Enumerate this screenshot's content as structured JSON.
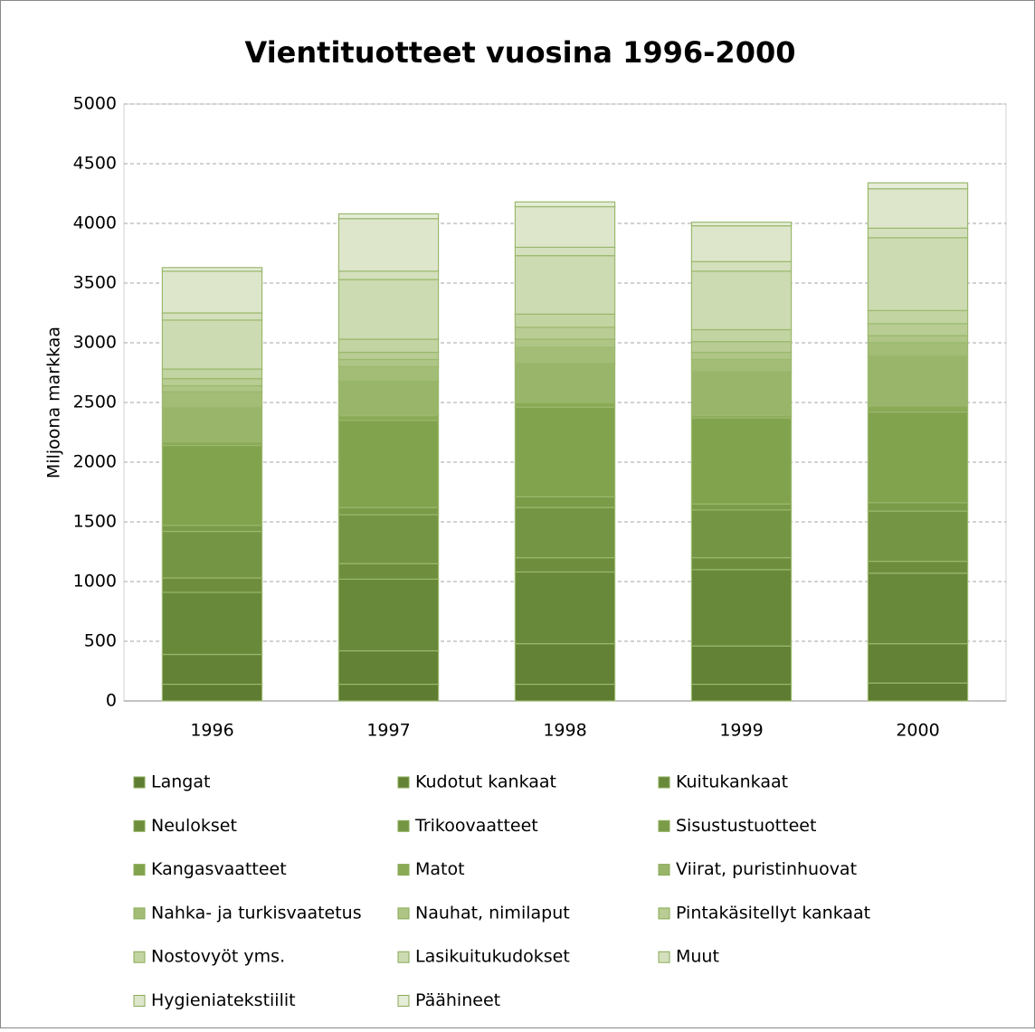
{
  "chart_data": {
    "type": "stacked_bar",
    "title": "Vientituotteet vuosina 1996-2000",
    "y_label": "Miljoona markkaa",
    "categories": [
      "1996",
      "1997",
      "1998",
      "1999",
      "2000"
    ],
    "ylim": [
      0,
      5000
    ],
    "yticks": [
      0,
      500,
      1000,
      1500,
      2000,
      2500,
      3000,
      3500,
      4000,
      4500,
      5000
    ],
    "grid": true,
    "legend": "bottom",
    "series": [
      {
        "name": "Langat",
        "color": "#5e7c32",
        "values": [
          140,
          140,
          140,
          140,
          150
        ]
      },
      {
        "name": "Kudotut kankaat",
        "color": "#638236",
        "values": [
          250,
          280,
          340,
          320,
          330
        ]
      },
      {
        "name": "Kuitukankaat",
        "color": "#68883a",
        "values": [
          520,
          600,
          600,
          640,
          590
        ]
      },
      {
        "name": "Neulokset",
        "color": "#6e8e3e",
        "values": [
          120,
          130,
          120,
          100,
          100
        ]
      },
      {
        "name": "Trikoovaatteet",
        "color": "#749543",
        "values": [
          390,
          410,
          420,
          400,
          420
        ]
      },
      {
        "name": "Sisustustuotteet",
        "color": "#7a9b48",
        "values": [
          50,
          60,
          90,
          50,
          70
        ]
      },
      {
        "name": "Kangasvaatteet",
        "color": "#82a34e",
        "values": [
          670,
          730,
          750,
          720,
          760
        ]
      },
      {
        "name": "Matot",
        "color": "#8aaa56",
        "values": [
          30,
          40,
          40,
          20,
          50
        ]
      },
      {
        "name": "Viirat, puristinhuovat",
        "color": "#99b56a",
        "values": [
          290,
          290,
          330,
          370,
          420
        ]
      },
      {
        "name": "Nahka- ja turkisvaatetus",
        "color": "#a3bd77",
        "values": [
          130,
          120,
          130,
          100,
          110
        ]
      },
      {
        "name": "Nauhat, nimilaput",
        "color": "#aec585",
        "values": [
          50,
          60,
          70,
          60,
          60
        ]
      },
      {
        "name": "Pintakäsitellyt kankaat",
        "color": "#b8cc93",
        "values": [
          60,
          60,
          100,
          90,
          100
        ]
      },
      {
        "name": "Nostovyöt yms.",
        "color": "#c2d4a1",
        "values": [
          80,
          110,
          110,
          100,
          110
        ]
      },
      {
        "name": "Lasikuitukudokset",
        "color": "#ccdbb1",
        "values": [
          410,
          500,
          490,
          490,
          610
        ]
      },
      {
        "name": "Muut",
        "color": "#d4e0bd",
        "values": [
          60,
          70,
          70,
          80,
          80
        ]
      },
      {
        "name": "Hygieniatekstiilit",
        "color": "#dde6cb",
        "values": [
          350,
          440,
          340,
          300,
          330
        ]
      },
      {
        "name": "Päähineet",
        "color": "#e5ecd7",
        "values": [
          30,
          40,
          40,
          30,
          50
        ]
      }
    ]
  }
}
